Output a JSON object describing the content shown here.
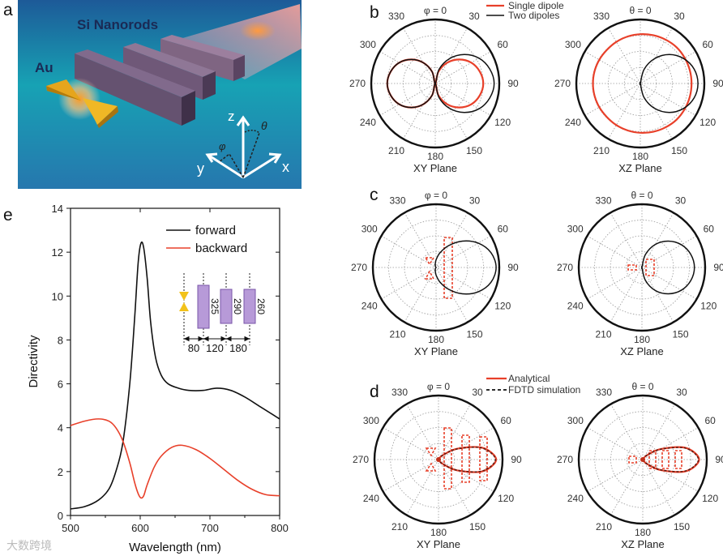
{
  "panel_labels": {
    "a": "a",
    "b": "b",
    "c": "c",
    "d": "d",
    "e": "e"
  },
  "illustration": {
    "title": "Si Nanorods",
    "au_label": "Au",
    "axis_z": "z",
    "axis_y": "y",
    "axis_x": "x",
    "angle_theta": "θ",
    "angle_phi": "φ"
  },
  "colors": {
    "red": "#e8402a",
    "black": "#111111",
    "grid": "#999999"
  },
  "watermark": "大数跨境",
  "chart_data": [
    {
      "type": "line",
      "panel": "e",
      "xlabel": "Wavelength (nm)",
      "ylabel": "Directivity",
      "xlim": [
        500,
        800
      ],
      "ylim": [
        0,
        14
      ],
      "xticks": [
        "500",
        "600",
        "700",
        "800"
      ],
      "yticks": [
        "0",
        "2",
        "4",
        "6",
        "8",
        "10",
        "12",
        "14"
      ],
      "legend_position": "top-right",
      "series": [
        {
          "name": "forward",
          "color": "#111111",
          "x": [
            500,
            520,
            540,
            555,
            565,
            575,
            585,
            592,
            597,
            601,
            605,
            610,
            615,
            622,
            630,
            640,
            655,
            670,
            690,
            710,
            730,
            750,
            770,
            790,
            800
          ],
          "y": [
            0.3,
            0.4,
            0.7,
            1.2,
            2.0,
            3.3,
            6.0,
            9.0,
            11.5,
            12.4,
            12.2,
            10.8,
            8.8,
            7.2,
            6.4,
            6.0,
            5.8,
            5.7,
            5.7,
            5.8,
            5.7,
            5.4,
            5.0,
            4.6,
            4.4
          ]
        },
        {
          "name": "backward",
          "color": "#e8402a",
          "x": [
            500,
            520,
            540,
            555,
            565,
            575,
            585,
            592,
            597,
            601,
            605,
            610,
            620,
            630,
            645,
            660,
            680,
            700,
            720,
            740,
            760,
            780,
            800
          ],
          "y": [
            4.1,
            4.3,
            4.4,
            4.3,
            4.0,
            3.4,
            2.4,
            1.5,
            1.0,
            0.8,
            0.9,
            1.4,
            2.2,
            2.7,
            3.1,
            3.2,
            3.0,
            2.6,
            2.1,
            1.6,
            1.2,
            0.95,
            0.9
          ]
        }
      ],
      "inset": {
        "gaps": [
          "80",
          "120",
          "180"
        ],
        "lengths": [
          "325",
          "290",
          "260"
        ]
      }
    },
    {
      "type": "polar",
      "panel": "b",
      "legend": [
        {
          "name": "Single dipole",
          "color": "#e8402a",
          "style": "solid"
        },
        {
          "name": "Two dipoles",
          "color": "#111111",
          "style": "solid"
        }
      ],
      "angle_step_deg": 15,
      "angle_ticks": [
        "0",
        "30",
        "60",
        "90",
        "120",
        "150",
        "180",
        "210",
        "240",
        "270",
        "300",
        "330"
      ],
      "plots": [
        {
          "top_label": "φ = 0",
          "plane": "XY Plane",
          "series": [
            {
              "name": "Single dipole",
              "color": "#e8402a",
              "r": [
                0,
                0.19,
                0.375,
                0.53,
                0.65,
                0.72,
                0.75,
                0.72,
                0.65,
                0.53,
                0.375,
                0.19,
                0,
                0.19,
                0.375,
                0.53,
                0.65,
                0.72,
                0.75,
                0.72,
                0.65,
                0.53,
                0.375,
                0.19
              ]
            },
            {
              "name": "Two dipoles",
              "color": "#111111",
              "r": [
                0,
                0.23,
                0.45,
                0.64,
                0.79,
                0.88,
                0.92,
                0.88,
                0.79,
                0.64,
                0.45,
                0.23,
                0,
                0.19,
                0.375,
                0.53,
                0.65,
                0.72,
                0.75,
                0.72,
                0.65,
                0.53,
                0.375,
                0.19
              ]
            }
          ]
        },
        {
          "top_label": "θ = 0",
          "plane": "XZ Plane",
          "series": [
            {
              "name": "Single dipole",
              "color": "#e8402a",
              "r": [
                0.77,
                0.78,
                0.79,
                0.8,
                0.8,
                0.8,
                0.8,
                0.8,
                0.8,
                0.8,
                0.79,
                0.78,
                0.77,
                0.76,
                0.75,
                0.74,
                0.74,
                0.74,
                0.74,
                0.74,
                0.74,
                0.74,
                0.75,
                0.76
              ]
            },
            {
              "name": "Two dipoles",
              "color": "#111111",
              "r": [
                0,
                0.23,
                0.45,
                0.64,
                0.78,
                0.87,
                0.9,
                0.87,
                0.78,
                0.64,
                0.45,
                0.23,
                0,
                0,
                0,
                0,
                0,
                0,
                0,
                0,
                0,
                0,
                0,
                0
              ]
            }
          ]
        }
      ]
    },
    {
      "type": "polar",
      "panel": "c",
      "angle_step_deg": 15,
      "angle_ticks": [
        "0",
        "30",
        "60",
        "90",
        "120",
        "150",
        "180",
        "210",
        "240",
        "270",
        "300",
        "330"
      ],
      "plots": [
        {
          "top_label": "φ = 0",
          "plane": "XY Plane",
          "series": [
            {
              "name": "Two dipoles",
              "color": "#111111",
              "r": [
                0.12,
                0.24,
                0.4,
                0.59,
                0.77,
                0.9,
                0.95,
                0.9,
                0.77,
                0.59,
                0.4,
                0.24,
                0.12,
                0.05,
                0.02,
                0,
                0,
                0,
                0,
                0,
                0,
                0,
                0.02,
                0.05
              ]
            }
          ]
        },
        {
          "top_label": "θ = 0",
          "plane": "XZ Plane",
          "series": [
            {
              "name": "Two dipoles",
              "color": "#111111",
              "r": [
                0,
                0.21,
                0.42,
                0.59,
                0.72,
                0.8,
                0.83,
                0.8,
                0.72,
                0.59,
                0.42,
                0.21,
                0,
                0,
                0,
                0,
                0,
                0,
                0,
                0,
                0,
                0,
                0,
                0
              ]
            }
          ]
        }
      ]
    },
    {
      "type": "polar",
      "panel": "d",
      "legend": [
        {
          "name": "Analytical",
          "color": "#e8402a",
          "style": "solid"
        },
        {
          "name": "FDTD simulation",
          "color": "#111111",
          "style": "dashed"
        }
      ],
      "angle_step_deg": 15,
      "angle_ticks": [
        "0",
        "30",
        "60",
        "90",
        "120",
        "150",
        "180",
        "210",
        "240",
        "270",
        "300",
        "330"
      ],
      "plots": [
        {
          "top_label": "φ = 0",
          "plane": "XY Plane",
          "series": [
            {
              "name": "Analytical",
              "color": "#e8402a",
              "r": [
                0,
                0,
                0.02,
                0.1,
                0.34,
                0.71,
                0.9,
                0.71,
                0.34,
                0.1,
                0.02,
                0,
                0,
                0,
                0,
                0,
                0,
                0,
                0,
                0,
                0,
                0,
                0,
                0
              ]
            },
            {
              "name": "FDTD simulation",
              "color": "#5a1a10",
              "r": [
                0,
                0,
                0.02,
                0.1,
                0.33,
                0.7,
                0.89,
                0.7,
                0.33,
                0.1,
                0.02,
                0,
                0,
                0,
                0,
                0,
                0,
                0,
                0,
                0,
                0,
                0,
                0,
                0
              ]
            }
          ]
        },
        {
          "top_label": "θ = 0",
          "plane": "XZ Plane",
          "series": [
            {
              "name": "Analytical",
              "color": "#e8402a",
              "r": [
                0,
                0,
                0.02,
                0.1,
                0.33,
                0.7,
                0.88,
                0.7,
                0.33,
                0.1,
                0.02,
                0,
                0,
                0,
                0,
                0,
                0,
                0,
                0,
                0,
                0,
                0,
                0,
                0
              ]
            },
            {
              "name": "FDTD simulation",
              "color": "#5a1a10",
              "r": [
                0,
                0,
                0.02,
                0.1,
                0.32,
                0.69,
                0.87,
                0.69,
                0.32,
                0.1,
                0.02,
                0,
                0,
                0,
                0,
                0,
                0,
                0,
                0,
                0,
                0,
                0,
                0,
                0
              ]
            }
          ]
        }
      ]
    }
  ]
}
